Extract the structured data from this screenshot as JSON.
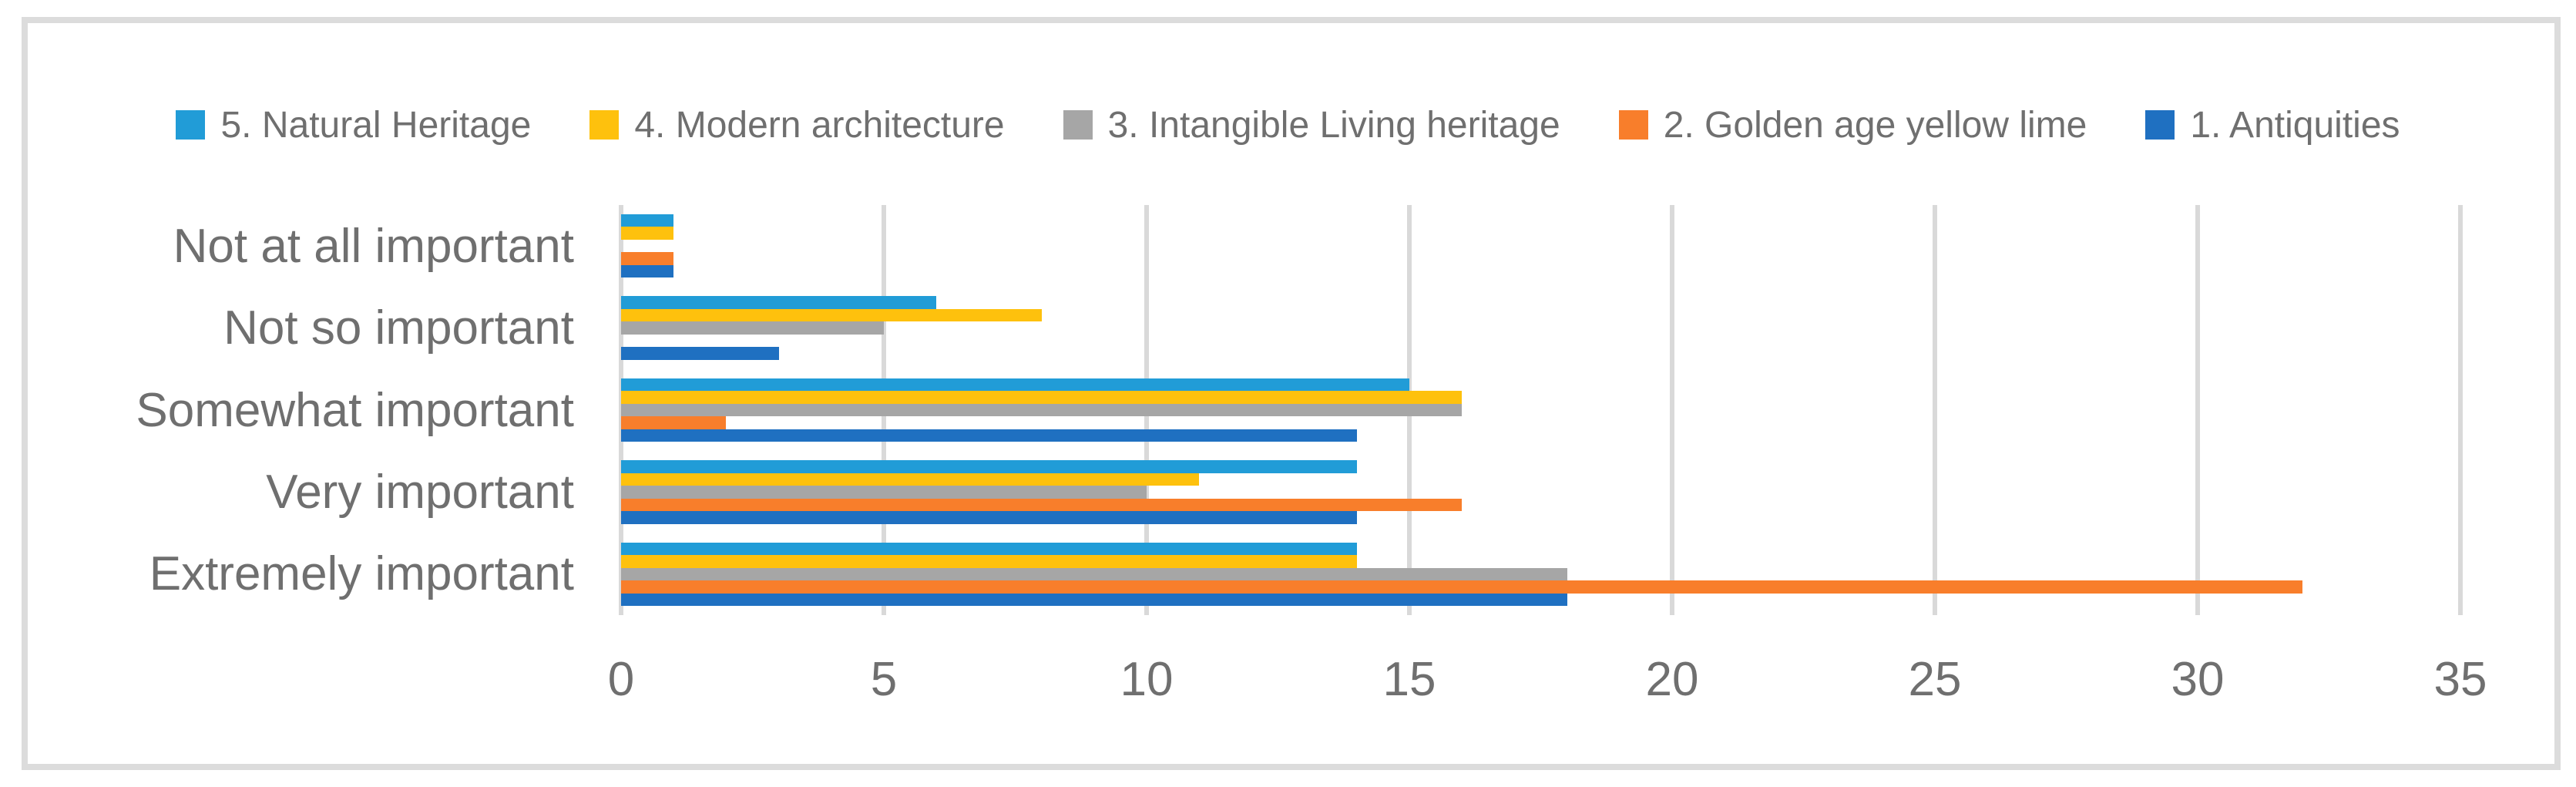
{
  "chart_data": {
    "type": "bar",
    "orientation": "horizontal",
    "title": "",
    "xlabel": "",
    "ylabel": "",
    "categories": [
      "Not at all important",
      "Not so important",
      "Somewhat important",
      "Very important",
      "Extremely important"
    ],
    "series": [
      {
        "name": "5. Natural Heritage",
        "color": "#219CD7",
        "values": [
          1,
          6,
          15,
          14,
          14
        ]
      },
      {
        "name": "4. Modern architecture",
        "color": "#FEC10D",
        "values": [
          1,
          8,
          16,
          11,
          14
        ]
      },
      {
        "name": "3. Intangible Living heritage",
        "color": "#A6A6A6",
        "values": [
          0,
          5,
          16,
          10,
          18
        ]
      },
      {
        "name": "2. Golden age yellow lime",
        "color": "#F87E2B",
        "values": [
          1,
          0,
          2,
          16,
          32
        ]
      },
      {
        "name": "1. Antiquities",
        "color": "#1F70C1",
        "values": [
          1,
          3,
          14,
          14,
          18
        ]
      }
    ],
    "xlim": [
      0,
      35
    ],
    "x_ticks": [
      0,
      5,
      10,
      15,
      20,
      25,
      30,
      35
    ],
    "grid": true,
    "legend_position": "top"
  },
  "colors": {
    "background": "#FFFFFF",
    "frame_border": "#DCDCDC",
    "gridline": "#D9D9D9",
    "text": "#6F6F6F"
  }
}
